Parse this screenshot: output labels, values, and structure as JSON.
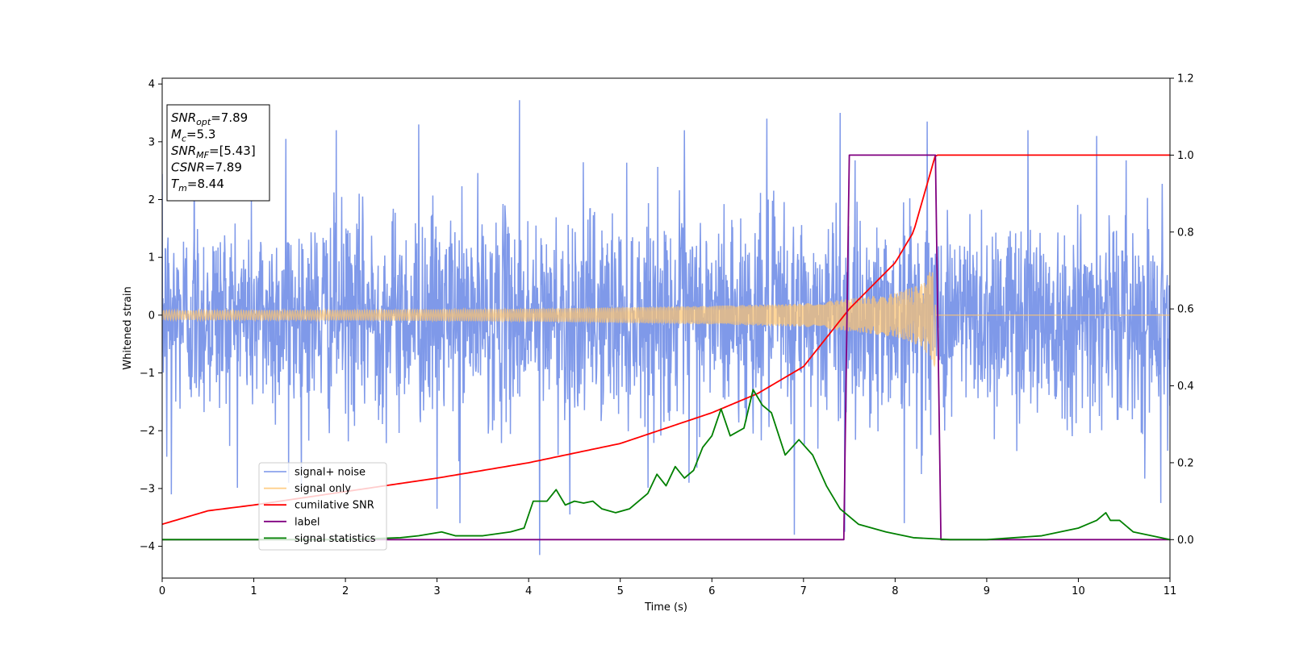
{
  "chart_data": {
    "type": "line",
    "title": "",
    "xlabel": "Time (s)",
    "ylabel": "Whitened strain",
    "y2label": "",
    "xlim": [
      0,
      11
    ],
    "ylim": [
      -4.55,
      4.1
    ],
    "y2lim": [
      -0.1,
      1.2
    ],
    "x_ticks": [
      0,
      1,
      2,
      3,
      4,
      5,
      6,
      7,
      8,
      9,
      10,
      11
    ],
    "x_tick_labels": [
      "0",
      "1",
      "2",
      "3",
      "4",
      "5",
      "6",
      "7",
      "8",
      "9",
      "10",
      "11"
    ],
    "y_ticks": [
      4,
      3,
      2,
      1,
      0,
      -1,
      -2,
      -3,
      -4
    ],
    "y_tick_labels": [
      "4",
      "3",
      "2",
      "1",
      "0",
      "−1",
      "−2",
      "−3",
      "−4"
    ],
    "y2_ticks": [
      1.2,
      1.0,
      0.8,
      0.6,
      0.4,
      0.2,
      0.0
    ],
    "y2_tick_labels": [
      "1.2",
      "1.0",
      "0.8",
      "0.6",
      "0.4",
      "0.2",
      "0.0"
    ],
    "grid": false,
    "legend_position": "lower-left",
    "info_box": {
      "lines": [
        {
          "main": "SNR",
          "sub": "opt",
          "rest": "=7.89"
        },
        {
          "main": "M",
          "sub": "c",
          "rest": "=5.3"
        },
        {
          "main": "SNR",
          "sub": "MF",
          "rest": "=[5.43]"
        },
        {
          "main": "CSNR",
          "sub": "",
          "rest": "=7.89"
        },
        {
          "main": "T",
          "sub": "m",
          "rest": "=8.44"
        }
      ]
    },
    "series": [
      {
        "name": "signal+ noise",
        "axis": "left",
        "color": "#7893e8",
        "kind": "noise_band",
        "x_range": [
          0,
          11
        ],
        "typical_band": [
          -1.6,
          1.6
        ],
        "peak_min": -4.15,
        "peak_max": 3.72,
        "peaks": [
          {
            "x": 0.05,
            "y": -2.45
          },
          {
            "x": 0.35,
            "y": 3.35
          },
          {
            "x": 0.1,
            "y": -3.1
          },
          {
            "x": 1.35,
            "y": 3.05
          },
          {
            "x": 1.38,
            "y": -2.9
          },
          {
            "x": 1.9,
            "y": 3.2
          },
          {
            "x": 2.8,
            "y": 3.3
          },
          {
            "x": 3.0,
            "y": -3.35
          },
          {
            "x": 3.25,
            "y": -3.6
          },
          {
            "x": 3.9,
            "y": 3.72
          },
          {
            "x": 4.12,
            "y": -4.15
          },
          {
            "x": 4.45,
            "y": 3.35
          },
          {
            "x": 4.45,
            "y": -3.45
          },
          {
            "x": 5.7,
            "y": 3.2
          },
          {
            "x": 5.75,
            "y": -2.9
          },
          {
            "x": 6.6,
            "y": 3.4
          },
          {
            "x": 6.9,
            "y": -3.8
          },
          {
            "x": 7.4,
            "y": 3.5
          },
          {
            "x": 7.45,
            "y": -3.75
          },
          {
            "x": 8.1,
            "y": -3.6
          },
          {
            "x": 8.35,
            "y": 3.35
          },
          {
            "x": 9.45,
            "y": 3.2
          },
          {
            "x": 10.2,
            "y": 3.1
          },
          {
            "x": 10.9,
            "y": -3.25
          }
        ]
      },
      {
        "name": "signal only",
        "axis": "left",
        "color": "#ffc46e",
        "kind": "chirp",
        "coalescence_time": 8.44,
        "amplitude_points": [
          {
            "x": 0,
            "y": 0.08
          },
          {
            "x": 2,
            "y": 0.09
          },
          {
            "x": 4,
            "y": 0.11
          },
          {
            "x": 6,
            "y": 0.16
          },
          {
            "x": 7,
            "y": 0.2
          },
          {
            "x": 7.5,
            "y": 0.28
          },
          {
            "x": 8,
            "y": 0.38
          },
          {
            "x": 8.3,
            "y": 0.55
          },
          {
            "x": 8.44,
            "y": 0.9
          }
        ]
      },
      {
        "name": "cumilative SNR",
        "axis": "right",
        "color": "#ff0000",
        "points": [
          {
            "x": 0,
            "y": 0.04
          },
          {
            "x": 0.5,
            "y": 0.075
          },
          {
            "x": 1,
            "y": 0.09
          },
          {
            "x": 2,
            "y": 0.125
          },
          {
            "x": 3,
            "y": 0.16
          },
          {
            "x": 4,
            "y": 0.2
          },
          {
            "x": 5,
            "y": 0.25
          },
          {
            "x": 6,
            "y": 0.33
          },
          {
            "x": 6.5,
            "y": 0.38
          },
          {
            "x": 7,
            "y": 0.45
          },
          {
            "x": 7.5,
            "y": 0.6
          },
          {
            "x": 8,
            "y": 0.72
          },
          {
            "x": 8.2,
            "y": 0.8
          },
          {
            "x": 8.44,
            "y": 1.0
          },
          {
            "x": 11,
            "y": 1.0
          }
        ]
      },
      {
        "name": "label",
        "axis": "right",
        "color": "#800080",
        "points": [
          {
            "x": 0,
            "y": 0.0
          },
          {
            "x": 7.44,
            "y": 0.0
          },
          {
            "x": 7.5,
            "y": 1.0
          },
          {
            "x": 8.44,
            "y": 1.0
          },
          {
            "x": 8.5,
            "y": 0.0
          },
          {
            "x": 11,
            "y": 0.0
          }
        ]
      },
      {
        "name": "signal statistics",
        "axis": "right",
        "color": "#008000",
        "points": [
          {
            "x": 0,
            "y": 0.0
          },
          {
            "x": 1.0,
            "y": 0.0
          },
          {
            "x": 2.0,
            "y": 0.0
          },
          {
            "x": 2.6,
            "y": 0.005
          },
          {
            "x": 2.8,
            "y": 0.01
          },
          {
            "x": 3.05,
            "y": 0.02
          },
          {
            "x": 3.2,
            "y": 0.01
          },
          {
            "x": 3.5,
            "y": 0.01
          },
          {
            "x": 3.8,
            "y": 0.02
          },
          {
            "x": 3.95,
            "y": 0.03
          },
          {
            "x": 4.05,
            "y": 0.1
          },
          {
            "x": 4.2,
            "y": 0.1
          },
          {
            "x": 4.3,
            "y": 0.13
          },
          {
            "x": 4.4,
            "y": 0.09
          },
          {
            "x": 4.5,
            "y": 0.1
          },
          {
            "x": 4.6,
            "y": 0.095
          },
          {
            "x": 4.7,
            "y": 0.1
          },
          {
            "x": 4.8,
            "y": 0.08
          },
          {
            "x": 4.95,
            "y": 0.07
          },
          {
            "x": 5.1,
            "y": 0.08
          },
          {
            "x": 5.3,
            "y": 0.12
          },
          {
            "x": 5.4,
            "y": 0.17
          },
          {
            "x": 5.5,
            "y": 0.14
          },
          {
            "x": 5.6,
            "y": 0.19
          },
          {
            "x": 5.7,
            "y": 0.16
          },
          {
            "x": 5.8,
            "y": 0.18
          },
          {
            "x": 5.9,
            "y": 0.24
          },
          {
            "x": 6.0,
            "y": 0.27
          },
          {
            "x": 6.1,
            "y": 0.34
          },
          {
            "x": 6.2,
            "y": 0.27
          },
          {
            "x": 6.35,
            "y": 0.29
          },
          {
            "x": 6.45,
            "y": 0.39
          },
          {
            "x": 6.55,
            "y": 0.35
          },
          {
            "x": 6.65,
            "y": 0.33
          },
          {
            "x": 6.8,
            "y": 0.22
          },
          {
            "x": 6.95,
            "y": 0.26
          },
          {
            "x": 7.1,
            "y": 0.22
          },
          {
            "x": 7.25,
            "y": 0.14
          },
          {
            "x": 7.4,
            "y": 0.08
          },
          {
            "x": 7.6,
            "y": 0.04
          },
          {
            "x": 7.9,
            "y": 0.02
          },
          {
            "x": 8.2,
            "y": 0.005
          },
          {
            "x": 8.6,
            "y": 0.0
          },
          {
            "x": 9.0,
            "y": 0.0
          },
          {
            "x": 9.6,
            "y": 0.01
          },
          {
            "x": 9.8,
            "y": 0.02
          },
          {
            "x": 10.0,
            "y": 0.03
          },
          {
            "x": 10.1,
            "y": 0.04
          },
          {
            "x": 10.2,
            "y": 0.05
          },
          {
            "x": 10.3,
            "y": 0.07
          },
          {
            "x": 10.35,
            "y": 0.05
          },
          {
            "x": 10.45,
            "y": 0.05
          },
          {
            "x": 10.6,
            "y": 0.02
          },
          {
            "x": 10.8,
            "y": 0.01
          },
          {
            "x": 11.0,
            "y": 0.0
          }
        ]
      }
    ]
  }
}
